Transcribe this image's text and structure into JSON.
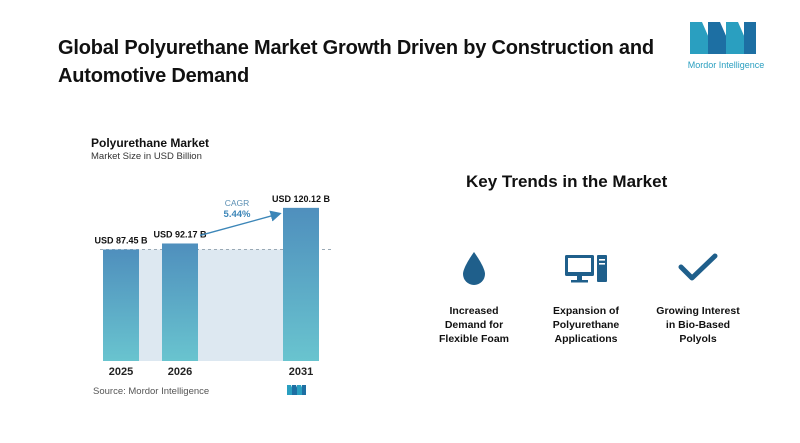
{
  "headline": "Global Polyurethane Market Growth Driven by Construction and Automotive Demand",
  "logo": {
    "text": "Mordor Intelligence"
  },
  "chart_data": {
    "type": "bar",
    "title": "Polyurethane Market",
    "subtitle": "Market Size in USD Billion",
    "categories": [
      "2025",
      "2026",
      "2031"
    ],
    "values": [
      87.45,
      92.17,
      120.12
    ],
    "value_labels": [
      "USD 87.45 B",
      "USD 92.17 B",
      "USD 120.12 B"
    ],
    "cagr_label": "CAGR",
    "cagr_value": "5.44%",
    "unit": "USD Billion",
    "ylim": [
      0,
      130
    ],
    "grid": false,
    "colors": {
      "bar_top": "#4f8fbd",
      "bar_bottom": "#69c4cf",
      "shade": "#dde8f1",
      "arrow": "#3c86b8"
    }
  },
  "source": "Source: Mordor Intelligence",
  "trends": {
    "title": "Key Trends in the Market",
    "items": [
      {
        "icon": "water-drop-icon",
        "label_lines": [
          "Increased",
          "Demand for",
          "Flexible Foam"
        ]
      },
      {
        "icon": "computer-icon",
        "label_lines": [
          "Expansion of",
          "Polyurethane",
          "Applications"
        ]
      },
      {
        "icon": "checkmark-icon",
        "label_lines": [
          "Growing Interest",
          "in Bio-Based",
          "Polyols"
        ]
      }
    ]
  },
  "colors": {
    "accent": "#1f5f8b",
    "brand_teal": "#2a9fc0"
  }
}
